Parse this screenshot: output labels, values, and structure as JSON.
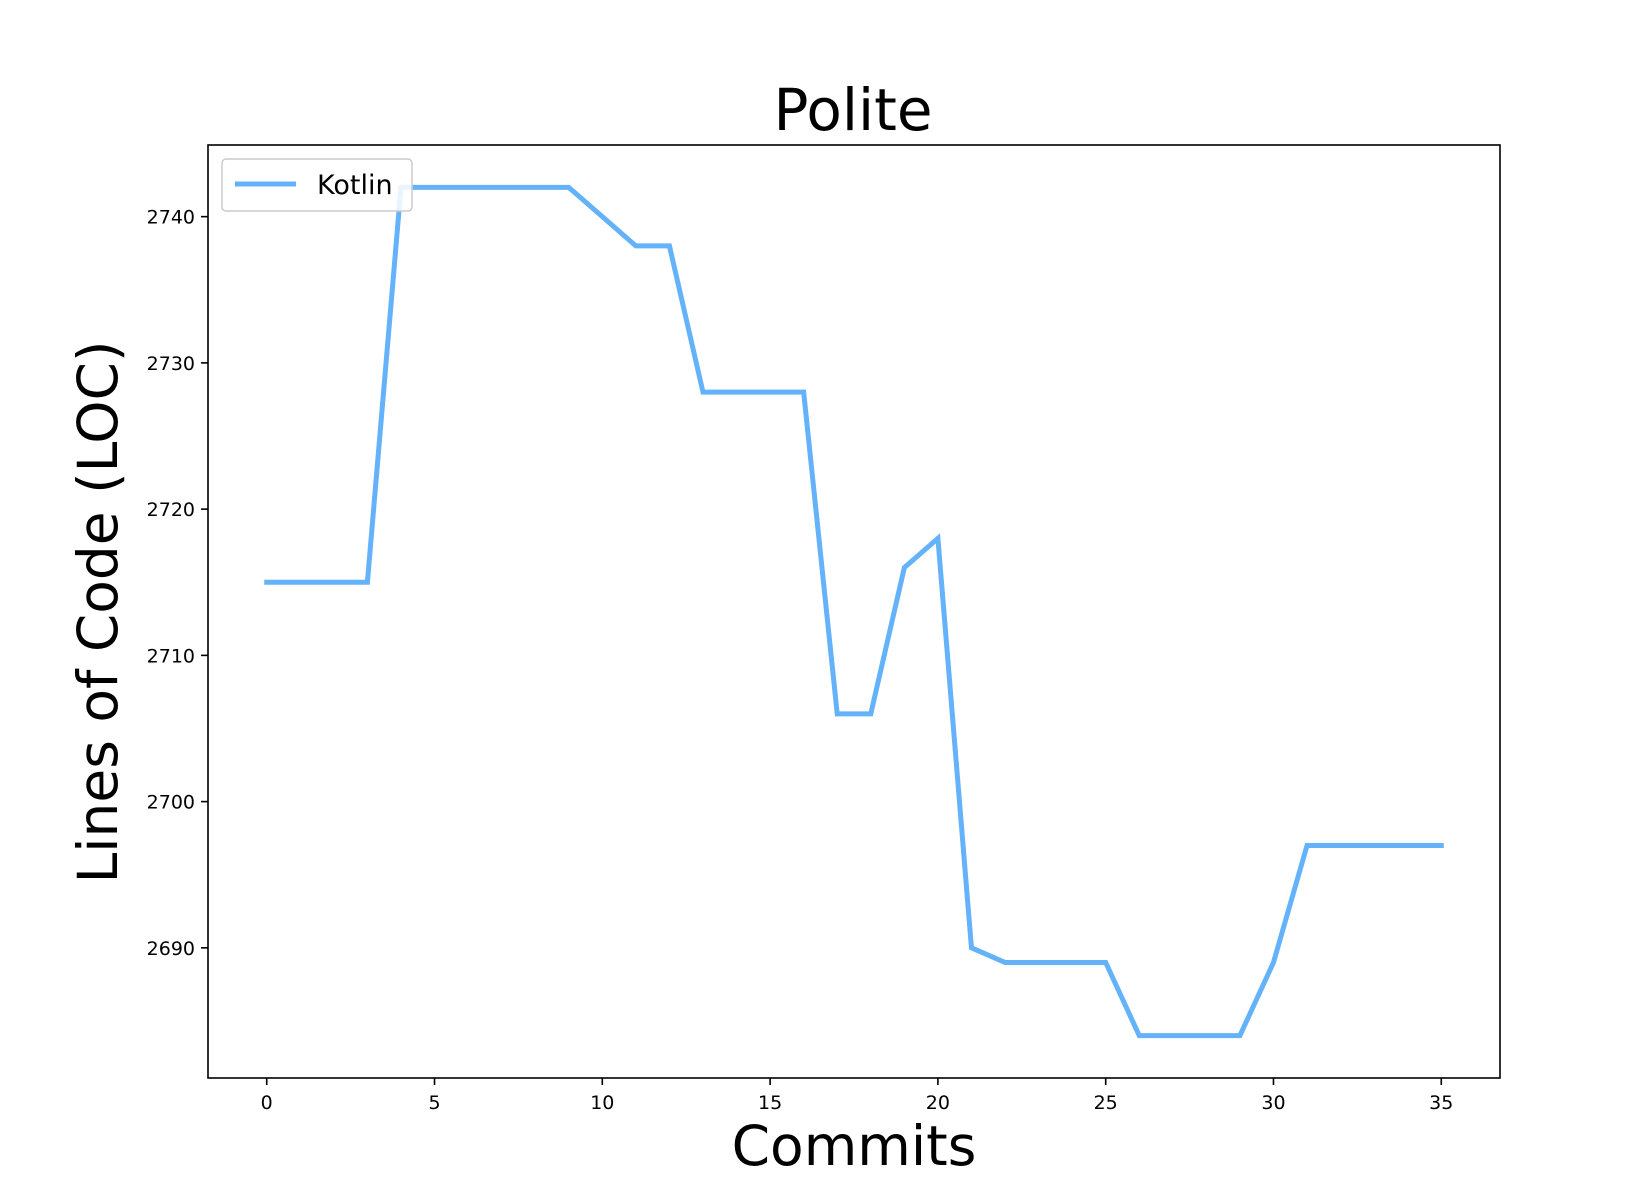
{
  "chart_data": {
    "type": "line",
    "title": "Polite",
    "xlabel": "Commits",
    "ylabel": "Lines of Code (LOC)",
    "xlim": [
      -1.75,
      36.75
    ],
    "ylim": [
      2681.1,
      2744.9
    ],
    "xticks": [
      0,
      5,
      10,
      15,
      20,
      25,
      30,
      35
    ],
    "yticks": [
      2690,
      2700,
      2710,
      2720,
      2730,
      2740
    ],
    "grid": false,
    "legend_position": "upper left",
    "series": [
      {
        "name": "Kotlin",
        "color": "#64b2fa",
        "x": [
          0,
          1,
          2,
          3,
          4,
          5,
          6,
          7,
          8,
          9,
          10,
          11,
          12,
          13,
          14,
          15,
          16,
          17,
          18,
          19,
          20,
          21,
          22,
          23,
          24,
          25,
          26,
          27,
          28,
          29,
          30,
          31,
          32,
          33,
          34,
          35
        ],
        "values": [
          2715,
          2715,
          2715,
          2715,
          2742,
          2742,
          2742,
          2742,
          2742,
          2742,
          2740,
          2738,
          2738,
          2728,
          2728,
          2728,
          2728,
          2706,
          2706,
          2716,
          2718,
          2690,
          2689,
          2689,
          2689,
          2689,
          2684,
          2684,
          2684,
          2684,
          2689,
          2697,
          2697,
          2697,
          2697,
          2697
        ]
      }
    ]
  }
}
